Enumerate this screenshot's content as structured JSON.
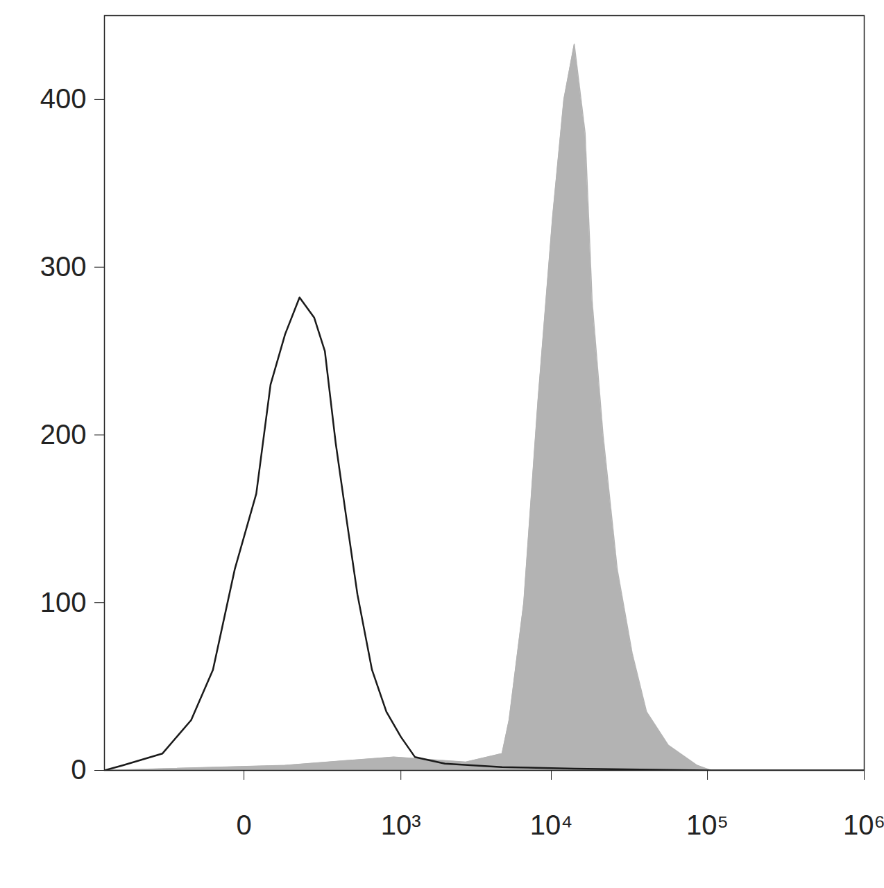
{
  "chart_data": {
    "type": "line",
    "log": "x",
    "grid": false,
    "xlim": [
      -750,
      1000000
    ],
    "ylim": [
      0,
      450
    ],
    "xticks": [
      {
        "value": 0,
        "label": "0"
      },
      {
        "value": 1000,
        "label": "10³"
      },
      {
        "value": 10000,
        "label": "10⁴"
      },
      {
        "value": 100000,
        "label": "10⁵"
      },
      {
        "value": 1000000,
        "label": "10⁶"
      }
    ],
    "yticks": [
      0,
      100,
      200,
      300,
      400
    ],
    "series": [
      {
        "type": "area",
        "color": "#b3b3b3",
        "x": [
          -750,
          92,
          890,
          2770,
          4795,
          5329,
          6640,
          8200,
          10200,
          12050,
          14053,
          16500,
          18300,
          21500,
          26500,
          33000,
          40800,
          56200,
          86000,
          106000,
          1000000
        ],
        "values": [
          0,
          3,
          8,
          5,
          10,
          30,
          100,
          220,
          330,
          400,
          433,
          380,
          280,
          200,
          120,
          70,
          35,
          15,
          3,
          0,
          0
        ]
      },
      {
        "type": "line",
        "color": "#1a1a1a",
        "x": [
          -750,
          -548,
          -257,
          -130,
          -64,
          -16,
          22,
          53,
          92,
          140,
          200,
          253,
          316,
          389,
          476,
          616,
          787,
          1000,
          1254,
          2009,
          4795,
          14053,
          106000,
          1000000
        ],
        "values": [
          0,
          3,
          10,
          30,
          60,
          120,
          165,
          230,
          260,
          282,
          270,
          250,
          195,
          150,
          105,
          60,
          35,
          20,
          8,
          4,
          2,
          1,
          0,
          0
        ]
      }
    ]
  }
}
